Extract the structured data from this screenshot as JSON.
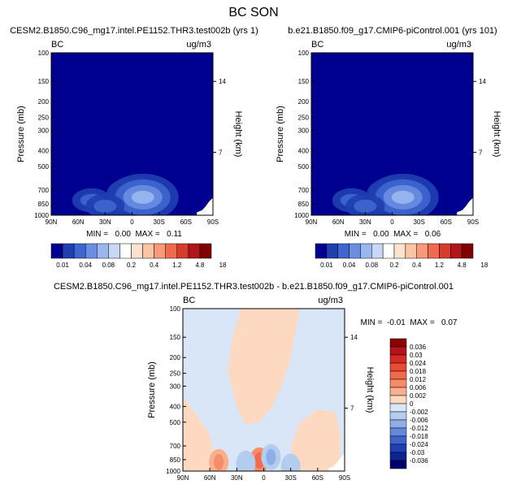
{
  "figure": {
    "title": "BC SON",
    "diff_title": "CESM2.B1850.C96_mg17.intel.PE1152.THR3.test002b - b.e21.B1850.f09_g17.CMIP6-piControl.001"
  },
  "chart_data": [
    {
      "type": "heatmap",
      "title": "CESM2.B1850.C96_mg17.intel.PE1152.THR3.test002b (yrs 1)",
      "left_label": "BC",
      "right_label": "ug/m3",
      "ylabel": "Pressure (mb)",
      "ylabel_right": "Height (km)",
      "xticks": [
        "90N",
        "60N",
        "30N",
        "0",
        "30S",
        "60S",
        "90S"
      ],
      "yticks": [
        "100",
        "150",
        "200",
        "250",
        "300",
        "400",
        "500",
        "700",
        "850",
        "1000"
      ],
      "height_ticks": [
        "14",
        "7"
      ],
      "ylim": [
        1000,
        100
      ],
      "yscale": "log",
      "stats": "MIN =   0.00  MAX =   0.11",
      "colorbar": {
        "labels": [
          "0.01",
          "0.04",
          "0.08",
          "0.2",
          "0.4",
          "1.2",
          "4.8",
          "18"
        ],
        "colors": [
          "#000090",
          "#1f3fb0",
          "#3f66d0",
          "#6a8ee2",
          "#9ab8ef",
          "#c6d8f5",
          "#ffffff",
          "#fde3cf",
          "#fbc4a4",
          "#f79a78",
          "#ef6a4f",
          "#d63c2c",
          "#b0151a",
          "#800000"
        ]
      },
      "blobs": [
        {
          "lat": -2,
          "p": 750,
          "level": 3
        },
        {
          "lat": -12,
          "p": 775,
          "level": 4
        },
        {
          "lat": 45,
          "p": 810,
          "level": 2
        },
        {
          "lat": 30,
          "p": 880,
          "level": 2
        }
      ]
    },
    {
      "type": "heatmap",
      "title": "b.e21.B1850.f09_g17.CMIP6-piControl.001 (yrs 101)",
      "left_label": "BC",
      "right_label": "ug/m3",
      "ylabel": "Pressure (mb)",
      "ylabel_right": "Height (km)",
      "xticks": [
        "90N",
        "60N",
        "30N",
        "0",
        "30S",
        "60S",
        "90S"
      ],
      "yticks": [
        "100",
        "150",
        "200",
        "250",
        "300",
        "400",
        "500",
        "700",
        "850",
        "1000"
      ],
      "height_ticks": [
        "14",
        "7"
      ],
      "ylim": [
        1000,
        100
      ],
      "yscale": "log",
      "stats": "MIN =   0.00  MAX =   0.06",
      "colorbar": {
        "labels": [
          "0.01",
          "0.04",
          "0.08",
          "0.2",
          "0.4",
          "1.2",
          "4.8",
          "18"
        ],
        "colors": [
          "#000090",
          "#1f3fb0",
          "#3f66d0",
          "#6a8ee2",
          "#9ab8ef",
          "#c6d8f5",
          "#ffffff",
          "#fde3cf",
          "#fbc4a4",
          "#f79a78",
          "#ef6a4f",
          "#d63c2c",
          "#b0151a",
          "#800000"
        ]
      },
      "blobs": [
        {
          "lat": -2,
          "p": 750,
          "level": 3
        },
        {
          "lat": -12,
          "p": 775,
          "level": 4
        },
        {
          "lat": 45,
          "p": 810,
          "level": 2
        },
        {
          "lat": 30,
          "p": 880,
          "level": 2
        }
      ]
    },
    {
      "type": "heatmap",
      "title": "",
      "left_label": "BC",
      "right_label": "ug/m3",
      "ylabel": "Pressure (mb)",
      "ylabel_right": "Height (km)",
      "xticks": [
        "90N",
        "60N",
        "30N",
        "0",
        "30S",
        "60S",
        "90S"
      ],
      "yticks": [
        "100",
        "150",
        "200",
        "250",
        "300",
        "400",
        "500",
        "700",
        "850",
        "1000"
      ],
      "height_ticks": [
        "14",
        "7"
      ],
      "ylim": [
        1000,
        100
      ],
      "yscale": "log",
      "stats": "MIN =  -0.01  MAX =   0.07",
      "colorbar": {
        "labels": [
          "0.036",
          "0.03",
          "0.024",
          "0.018",
          "0.012",
          "0.006",
          "0.002",
          "0",
          "-0.002",
          "-0.006",
          "-0.012",
          "-0.018",
          "-0.024",
          "-0.03",
          "-0.036"
        ],
        "colors": [
          "#8b0000",
          "#b5121b",
          "#d62a22",
          "#ea4a33",
          "#f26a4b",
          "#f78c68",
          "#fbb08d",
          "#fdd9c2",
          "#d8e6f7",
          "#b3cdef",
          "#8daee6",
          "#6688db",
          "#3f62cc",
          "#1e3fb5",
          "#0a2590",
          "#000070"
        ]
      },
      "blobs": [
        {
          "lat": 5,
          "p": 860,
          "value": 0.012
        },
        {
          "lat": -8,
          "p": 820,
          "value": -0.012
        },
        {
          "lat": 20,
          "p": 900,
          "value": -0.006
        },
        {
          "lat": -30,
          "p": 940,
          "value": -0.006
        },
        {
          "lat": 50,
          "p": 880,
          "value": 0.006
        }
      ]
    }
  ]
}
